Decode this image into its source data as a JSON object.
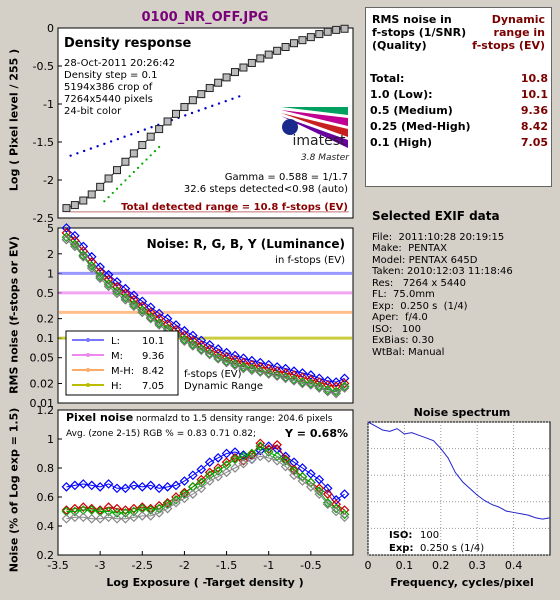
{
  "file_title": "0100_NR_OFF.JPG",
  "density": {
    "title": "Density response",
    "info": [
      "28-Oct-2011 20:26:42",
      "Density step = 0.1",
      "5194x386 crop of",
      "7264x5440 pixels",
      "24-bit color"
    ],
    "logo_text": "imatest",
    "logo_sub": "3.8  Master",
    "gamma_text": "Gamma = 0.588 = 1/1.7",
    "steps_text": "32.6 steps detected<0.98 (auto)",
    "range_text": "Total detected range = 10.8 f-stops (EV)",
    "ylabel": "Log ( Pixel level / 255 )",
    "colors": {
      "range": "#8b0000"
    }
  },
  "noise_fstops": {
    "title": "Noise: R, G, B, Y (Luminance)",
    "subtitle": "in f-stops (EV)",
    "ylabel": "RMS noise (f-stops or EV)",
    "legend": [
      {
        "label": "L:",
        "value": "10.1",
        "color": "#7777ff"
      },
      {
        "label": "M:",
        "value": "9.36",
        "color": "#ee88ee"
      },
      {
        "label": "M-H:",
        "value": "8.42",
        "color": "#ffaa66"
      },
      {
        "label": "H:",
        "value": "7.05",
        "color": "#bbbb00"
      }
    ],
    "legend_caption": [
      "f-stops (EV)",
      "Dynamic Range"
    ]
  },
  "pixel_noise": {
    "title": "Pixel noise",
    "norm_text": "normalzd to 1.5 density range: 204.6 pixels",
    "avg_text": "Avg. (zone 2-15) RGB % = 0.83  0.71  0.82;",
    "y_text": "Y = 0.68%",
    "ylabel": "Noise (% of Log exp = 1.5)",
    "xlabel": "Log Exposure ( -Target density )"
  },
  "spectrum": {
    "title": "Noise spectrum",
    "xlabel": "Frequency, cycles/pixel",
    "iso_label": "ISO:",
    "iso_value": "100",
    "exp_label": "Exp:",
    "exp_value": "0.250 s   (1/4)"
  },
  "summary": {
    "head_left": [
      "RMS noise in",
      "f-stops (1/SNR)",
      "(Quality)"
    ],
    "head_right": [
      "Dynamic",
      "range in",
      "f-stops (EV)"
    ],
    "rows": [
      {
        "label": "Total:",
        "value": "10.8"
      },
      {
        "label": "1.0  (Low):",
        "value": "10.1"
      },
      {
        "label": "0.5  (Medium)",
        "value": "9.36"
      },
      {
        "label": "0.25 (Med-High)",
        "value": "8.42"
      },
      {
        "label": "0.1   (High)",
        "value": "7.05"
      }
    ]
  },
  "exif": {
    "title": "Selected EXIF data",
    "lines": [
      "File:  2011:10:28 20:19:15",
      "Make:  PENTAX",
      "Model: PENTAX 645D",
      "Taken: 2010:12:03 11:18:46",
      "Res:   7264 x 5440",
      "FL:  75.0mm",
      "Exp:  0.250 s  (1/4)",
      "Aper:  f/4.0",
      "ISO:   100",
      "ExBias: 0.30",
      "WtBal: Manual"
    ]
  },
  "chart_data": [
    {
      "type": "scatter",
      "title": "Density response",
      "ylabel": "Log ( Pixel level / 255 )",
      "xlim": [
        -3.5,
        0
      ],
      "ylim": [
        -2.5,
        0
      ],
      "yticks": [
        -2.5,
        -2,
        -1.5,
        -1,
        -0.5,
        0
      ],
      "series": [
        {
          "x": [
            -3.4,
            -3.3,
            -3.2,
            -3.1,
            -3.0,
            -2.9,
            -2.8,
            -2.7,
            -2.6,
            -2.5,
            -2.4,
            -2.3,
            -2.2,
            -2.1,
            -2.0,
            -1.9,
            -1.8,
            -1.7,
            -1.6,
            -1.5,
            -1.4,
            -1.3,
            -1.2,
            -1.1,
            -1.0,
            -0.9,
            -0.8,
            -0.7,
            -0.6,
            -0.5,
            -0.4,
            -0.3,
            -0.2,
            -0.1
          ],
          "values": [
            -2.37,
            -2.33,
            -2.27,
            -2.19,
            -2.09,
            -1.98,
            -1.87,
            -1.76,
            -1.65,
            -1.54,
            -1.43,
            -1.33,
            -1.23,
            -1.13,
            -1.04,
            -0.95,
            -0.87,
            -0.79,
            -0.72,
            -0.65,
            -0.58,
            -0.52,
            -0.46,
            -0.4,
            -0.35,
            -0.3,
            -0.25,
            -0.2,
            -0.16,
            -0.12,
            -0.08,
            -0.05,
            -0.025,
            -0.01
          ]
        }
      ]
    },
    {
      "type": "scatter",
      "title": "Noise: R, G, B, Y (Luminance)",
      "ylabel": "RMS noise (f-stops or EV)",
      "scale": "log",
      "xlim": [
        -3.5,
        0
      ],
      "ylim": [
        0.01,
        5
      ],
      "yticks": [
        0.01,
        0.02,
        0.05,
        0.1,
        0.2,
        0.5,
        1,
        2,
        5
      ],
      "thresholds": [
        {
          "value": 1.0,
          "color": "#7777ff"
        },
        {
          "value": 0.5,
          "color": "#ee88ee"
        },
        {
          "value": 0.25,
          "color": "#ffaa66"
        },
        {
          "value": 0.1,
          "color": "#bbbb00"
        }
      ],
      "x": [
        -3.4,
        -3.3,
        -3.2,
        -3.1,
        -3.0,
        -2.9,
        -2.8,
        -2.7,
        -2.6,
        -2.5,
        -2.4,
        -2.3,
        -2.2,
        -2.1,
        -2.0,
        -1.9,
        -1.8,
        -1.7,
        -1.6,
        -1.5,
        -1.4,
        -1.3,
        -1.2,
        -1.1,
        -1.0,
        -0.9,
        -0.8,
        -0.7,
        -0.6,
        -0.5,
        -0.4,
        -0.3,
        -0.2,
        -0.1
      ],
      "series": [
        {
          "color": "#0000ff",
          "values": [
            5.0,
            3.8,
            2.6,
            1.8,
            1.25,
            0.95,
            0.74,
            0.58,
            0.46,
            0.37,
            0.3,
            0.24,
            0.2,
            0.16,
            0.13,
            0.11,
            0.092,
            0.079,
            0.068,
            0.06,
            0.054,
            0.049,
            0.045,
            0.042,
            0.039,
            0.036,
            0.034,
            0.031,
            0.029,
            0.027,
            0.024,
            0.022,
            0.021,
            0.024
          ]
        },
        {
          "color": "#cc0000",
          "values": [
            4.2,
            3.2,
            2.2,
            1.5,
            1.05,
            0.8,
            0.62,
            0.49,
            0.39,
            0.31,
            0.25,
            0.2,
            0.165,
            0.135,
            0.11,
            0.092,
            0.078,
            0.067,
            0.058,
            0.051,
            0.046,
            0.042,
            0.039,
            0.036,
            0.034,
            0.031,
            0.029,
            0.027,
            0.025,
            0.023,
            0.021,
            0.019,
            0.018,
            0.02
          ]
        },
        {
          "color": "#00aa00",
          "values": [
            3.6,
            2.8,
            1.9,
            1.3,
            0.9,
            0.68,
            0.53,
            0.42,
            0.33,
            0.27,
            0.21,
            0.17,
            0.14,
            0.115,
            0.095,
            0.08,
            0.068,
            0.058,
            0.05,
            0.044,
            0.04,
            0.036,
            0.034,
            0.031,
            0.029,
            0.027,
            0.025,
            0.023,
            0.021,
            0.02,
            0.018,
            0.016,
            0.015,
            0.018
          ]
        },
        {
          "color": "#777777",
          "values": [
            3.3,
            2.6,
            1.8,
            1.2,
            0.84,
            0.63,
            0.49,
            0.39,
            0.31,
            0.25,
            0.2,
            0.16,
            0.13,
            0.11,
            0.09,
            0.076,
            0.065,
            0.056,
            0.048,
            0.042,
            0.038,
            0.034,
            0.032,
            0.03,
            0.028,
            0.026,
            0.024,
            0.022,
            0.02,
            0.019,
            0.017,
            0.015,
            0.014,
            0.017
          ]
        }
      ]
    },
    {
      "type": "line",
      "title": "Pixel noise",
      "ylabel": "Noise (% of Log exp = 1.5)",
      "xlabel": "Log Exposure ( -Target density )",
      "xlim": [
        -3.5,
        0
      ],
      "ylim": [
        0.2,
        1.2
      ],
      "xticks": [
        -3.5,
        -3,
        -2.5,
        -2,
        -1.5,
        -1,
        -0.5
      ],
      "yticks": [
        0.2,
        0.4,
        0.6,
        0.8,
        1,
        1.2
      ],
      "x": [
        -3.4,
        -3.3,
        -3.2,
        -3.1,
        -3.0,
        -2.9,
        -2.8,
        -2.7,
        -2.6,
        -2.5,
        -2.4,
        -2.3,
        -2.2,
        -2.1,
        -2.0,
        -1.9,
        -1.8,
        -1.7,
        -1.6,
        -1.5,
        -1.4,
        -1.3,
        -1.2,
        -1.1,
        -1.0,
        -0.9,
        -0.8,
        -0.7,
        -0.6,
        -0.5,
        -0.4,
        -0.3,
        -0.2,
        -0.1
      ],
      "series": [
        {
          "color": "#0000ff",
          "values": [
            0.67,
            0.68,
            0.69,
            0.68,
            0.67,
            0.69,
            0.66,
            0.66,
            0.68,
            0.67,
            0.68,
            0.66,
            0.67,
            0.68,
            0.71,
            0.75,
            0.79,
            0.84,
            0.87,
            0.9,
            0.91,
            0.89,
            0.86,
            0.92,
            0.95,
            0.93,
            0.88,
            0.84,
            0.8,
            0.76,
            0.72,
            0.66,
            0.58,
            0.62
          ]
        },
        {
          "color": "#cc0000",
          "values": [
            0.51,
            0.52,
            0.53,
            0.52,
            0.51,
            0.53,
            0.52,
            0.51,
            0.52,
            0.53,
            0.52,
            0.54,
            0.56,
            0.6,
            0.63,
            0.67,
            0.72,
            0.77,
            0.8,
            0.84,
            0.87,
            0.85,
            0.89,
            0.97,
            0.93,
            0.96,
            0.86,
            0.79,
            0.74,
            0.7,
            0.66,
            0.62,
            0.55,
            0.51
          ]
        },
        {
          "color": "#00aa00",
          "values": [
            0.5,
            0.5,
            0.51,
            0.51,
            0.5,
            0.5,
            0.49,
            0.49,
            0.5,
            0.52,
            0.51,
            0.52,
            0.55,
            0.58,
            0.62,
            0.67,
            0.7,
            0.75,
            0.78,
            0.82,
            0.86,
            0.88,
            0.9,
            0.95,
            0.91,
            0.88,
            0.85,
            0.78,
            0.74,
            0.7,
            0.64,
            0.56,
            0.52,
            0.48
          ]
        },
        {
          "color": "#888888",
          "values": [
            0.45,
            0.46,
            0.46,
            0.45,
            0.45,
            0.46,
            0.45,
            0.45,
            0.46,
            0.47,
            0.47,
            0.49,
            0.52,
            0.56,
            0.59,
            0.62,
            0.66,
            0.71,
            0.74,
            0.77,
            0.8,
            0.83,
            0.86,
            0.88,
            0.87,
            0.85,
            0.81,
            0.75,
            0.71,
            0.67,
            0.62,
            0.55,
            0.5,
            0.46
          ]
        }
      ]
    },
    {
      "type": "line",
      "title": "Noise spectrum",
      "xlabel": "Frequency, cycles/pixel",
      "xlim": [
        0,
        0.5
      ],
      "ylim": [
        0,
        1
      ],
      "xticks": [
        0,
        0.1,
        0.2,
        0.3,
        0.4
      ],
      "yticks": [
        0,
        0.2,
        0.4,
        0.6,
        0.8,
        1
      ],
      "series": [
        {
          "color": "#2222cc",
          "x": [
            0.0,
            0.02,
            0.04,
            0.06,
            0.08,
            0.1,
            0.12,
            0.14,
            0.16,
            0.18,
            0.2,
            0.22,
            0.24,
            0.26,
            0.28,
            0.3,
            0.32,
            0.34,
            0.36,
            0.38,
            0.4,
            0.42,
            0.44,
            0.46,
            0.48,
            0.5
          ],
          "values": [
            1.0,
            0.97,
            0.94,
            0.93,
            0.95,
            0.91,
            0.92,
            0.9,
            0.88,
            0.86,
            0.8,
            0.73,
            0.62,
            0.55,
            0.5,
            0.45,
            0.41,
            0.38,
            0.36,
            0.33,
            0.32,
            0.31,
            0.3,
            0.28,
            0.27,
            0.28
          ]
        }
      ]
    }
  ]
}
